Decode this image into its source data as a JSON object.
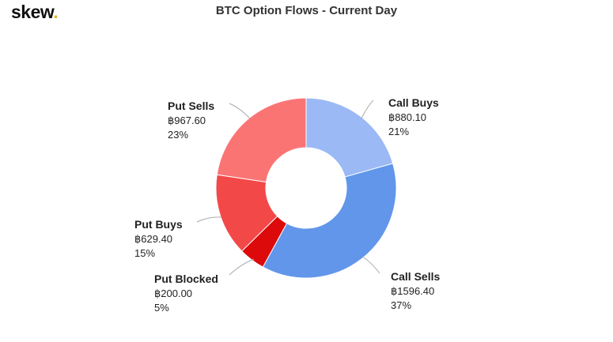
{
  "logo": {
    "text": "skew",
    "dot": "."
  },
  "chart_data": {
    "type": "pie",
    "title": "BTC Option Flows - Current Day",
    "donut": true,
    "slices": [
      {
        "name": "Call Buys",
        "value": 880.1,
        "value_label": "฿880.10",
        "percent_label": "21%",
        "color": "#9ab9f5"
      },
      {
        "name": "Call Sells",
        "value": 1596.4,
        "value_label": "฿1596.40",
        "percent_label": "37%",
        "color": "#6196ea"
      },
      {
        "name": "Put Blocked",
        "value": 200.0,
        "value_label": "฿200.00",
        "percent_label": "5%",
        "color": "#dc0a0a"
      },
      {
        "name": "Put Buys",
        "value": 629.4,
        "value_label": "฿629.40",
        "percent_label": "15%",
        "color": "#f24848"
      },
      {
        "name": "Put Sells",
        "value": 967.6,
        "value_label": "฿967.60",
        "percent_label": "23%",
        "color": "#fa7474"
      }
    ]
  }
}
